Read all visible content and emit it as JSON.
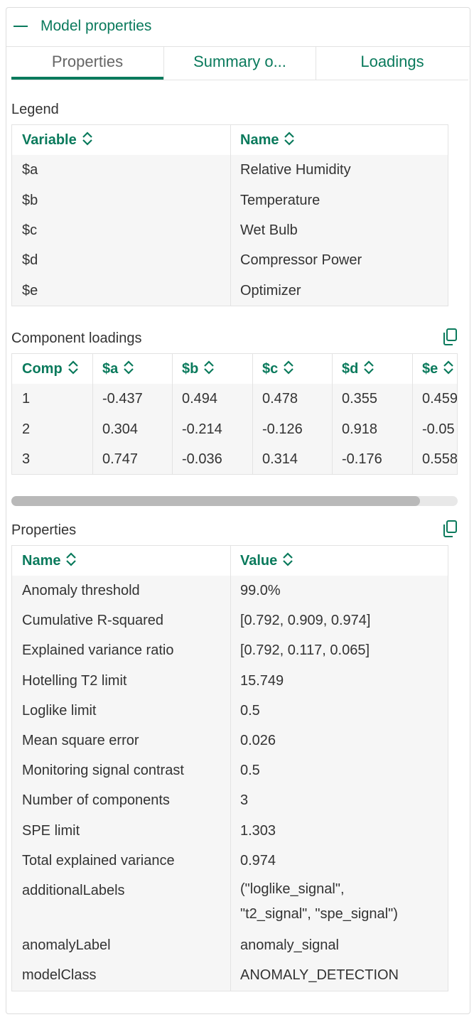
{
  "panel": {
    "title": "Model properties"
  },
  "tabs": [
    "Properties",
    "Summary o...",
    "Loadings"
  ],
  "legend": {
    "title": "Legend",
    "columns": [
      "Variable",
      "Name"
    ],
    "rows": [
      [
        "$a",
        "Relative Humidity"
      ],
      [
        "$b",
        "Temperature"
      ],
      [
        "$c",
        "Wet Bulb"
      ],
      [
        "$d",
        "Compressor Power"
      ],
      [
        "$e",
        "Optimizer"
      ]
    ]
  },
  "loadings": {
    "title": "Component loadings",
    "columns": [
      "Comp",
      "$a",
      "$b",
      "$c",
      "$d",
      "$e"
    ],
    "rows": [
      [
        "1",
        "-0.437",
        "0.494",
        "0.478",
        "0.355",
        "0.459"
      ],
      [
        "2",
        "0.304",
        "-0.214",
        "-0.126",
        "0.918",
        "-0.05"
      ],
      [
        "3",
        "0.747",
        "-0.036",
        "0.314",
        "-0.176",
        "0.558"
      ]
    ]
  },
  "properties": {
    "title": "Properties",
    "columns": [
      "Name",
      "Value"
    ],
    "rows": [
      [
        "Anomaly threshold",
        "99.0%"
      ],
      [
        "Cumulative R-squared",
        "[0.792, 0.909, 0.974]"
      ],
      [
        "Explained variance ratio",
        "[0.792, 0.117, 0.065]"
      ],
      [
        "Hotelling T2 limit",
        "15.749"
      ],
      [
        "Loglike limit",
        "0.5"
      ],
      [
        "Mean square error",
        "0.026"
      ],
      [
        "Monitoring signal contrast",
        "0.5"
      ],
      [
        "Number of components",
        "3"
      ],
      [
        "SPE limit",
        "1.303"
      ],
      [
        "Total explained variance",
        "0.974"
      ],
      [
        "additionalLabels",
        [
          "(\"loglike_signal\",",
          "\"t2_signal\", \"spe_signal\")"
        ]
      ],
      [
        "anomalyLabel",
        "anomaly_signal"
      ],
      [
        "modelClass",
        "ANOMALY_DETECTION"
      ]
    ]
  }
}
